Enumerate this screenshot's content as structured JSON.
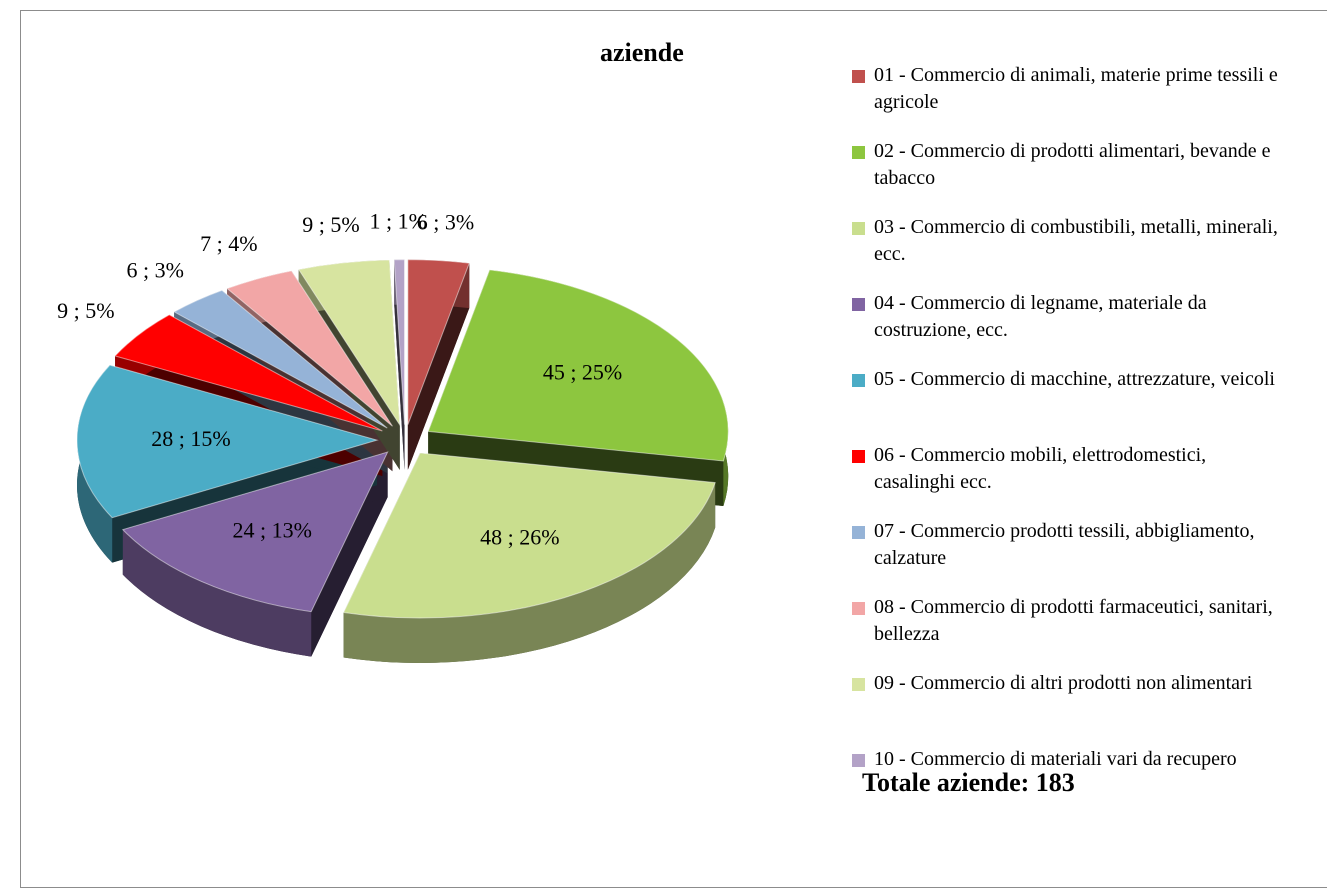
{
  "chart_data": {
    "type": "pie",
    "title": "aziende",
    "categories": [
      "01 - Commercio di animali, materie prime tessili e agricole",
      "02 - Commercio di prodotti alimentari, bevande e tabacco",
      "03 - Commercio di combustibili, metalli, minerali, ecc.",
      "04 - Commercio di legname, materiale da costruzione, ecc.",
      "05 - Commercio di macchine, attrezzature, veicoli",
      "06 - Commercio mobili, elettrodomestici, casalinghi ecc.",
      "07 - Commercio prodotti tessili, abbigliamento, calzature",
      "08 - Commercio di prodotti farmaceutici, sanitari, bellezza",
      "09 - Commercio di altri prodotti non alimentari",
      "10 - Commercio di materiali vari da recupero"
    ],
    "values": [
      6,
      45,
      48,
      24,
      28,
      9,
      6,
      7,
      9,
      1
    ],
    "value_labels": [
      "6 ; 3%",
      "45 ; 25%",
      "48 ; 26%",
      "24 ; 13%",
      "28 ; 15%",
      "9 ; 5%",
      "6 ; 3%",
      "7 ; 4%",
      "9 ; 5%",
      "1 ; 1%"
    ],
    "colors": [
      "#c0504d",
      "#8dc63f",
      "#c9de8e",
      "#8064a2",
      "#4bacc6",
      "#ff0000",
      "#95b3d7",
      "#f2a6a6",
      "#d7e4a0",
      "#b3a2c7"
    ],
    "legend": "right",
    "annotation": "Totale aziende: 183"
  }
}
